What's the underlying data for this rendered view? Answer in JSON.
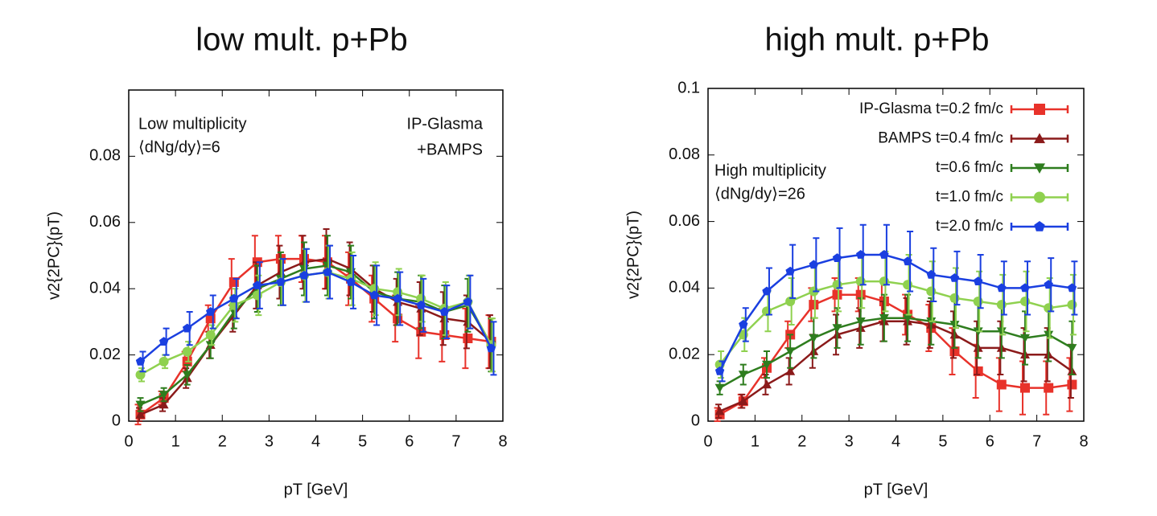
{
  "chart_data": [
    {
      "type": "line",
      "title": "low mult. p+Pb",
      "xlabel": "pT [GeV]",
      "ylabel": "v2{2PC}(pT)",
      "annotations": [
        "Low multiplicity",
        "⟨dNg/dy⟩=6",
        "IP-Glasma",
        "+BAMPS"
      ],
      "xlim": [
        0,
        8
      ],
      "ylim": [
        0,
        0.1
      ],
      "xticks": [
        0,
        1,
        2,
        3,
        4,
        5,
        6,
        7,
        8
      ],
      "yticks": [
        0,
        0.02,
        0.04,
        0.06,
        0.08
      ],
      "x": [
        0.25,
        0.75,
        1.25,
        1.75,
        2.25,
        2.75,
        3.25,
        3.75,
        4.25,
        4.75,
        5.25,
        5.75,
        6.25,
        6.75,
        7.25,
        7.75
      ],
      "series": [
        {
          "color": "#e8322a",
          "marker": "square",
          "values": [
            0.002,
            0.007,
            0.018,
            0.031,
            0.042,
            0.048,
            0.049,
            0.049,
            0.048,
            0.043,
            0.037,
            0.031,
            0.027,
            0.026,
            0.025,
            0.024
          ],
          "errors": [
            0.003,
            0.002,
            0.003,
            0.004,
            0.007,
            0.008,
            0.007,
            0.007,
            0.008,
            0.008,
            0.007,
            0.007,
            0.008,
            0.008,
            0.009,
            0.008
          ]
        },
        {
          "color": "#8b1a1a",
          "marker": "triangle",
          "values": [
            0.002,
            0.005,
            0.013,
            0.023,
            0.032,
            0.041,
            0.045,
            0.048,
            0.049,
            0.046,
            0.04,
            0.036,
            0.034,
            0.031,
            0.03,
            0.024
          ],
          "errors": [
            0.002,
            0.002,
            0.003,
            0.004,
            0.005,
            0.007,
            0.008,
            0.008,
            0.009,
            0.008,
            0.007,
            0.007,
            0.008,
            0.008,
            0.008,
            0.008
          ]
        },
        {
          "color": "#2e7d1e",
          "marker": "triangle-down",
          "values": [
            0.005,
            0.008,
            0.014,
            0.023,
            0.033,
            0.04,
            0.043,
            0.046,
            0.047,
            0.045,
            0.039,
            0.037,
            0.036,
            0.033,
            0.035,
            0.023
          ],
          "errors": [
            0.002,
            0.002,
            0.003,
            0.004,
            0.005,
            0.007,
            0.008,
            0.008,
            0.009,
            0.008,
            0.008,
            0.008,
            0.008,
            0.008,
            0.008,
            0.008
          ]
        },
        {
          "color": "#8fd14f",
          "marker": "circle",
          "values": [
            0.014,
            0.018,
            0.021,
            0.026,
            0.035,
            0.038,
            0.042,
            0.044,
            0.045,
            0.043,
            0.04,
            0.039,
            0.037,
            0.034,
            0.036,
            0.023
          ],
          "errors": [
            0.002,
            0.002,
            0.003,
            0.003,
            0.005,
            0.006,
            0.007,
            0.008,
            0.008,
            0.008,
            0.008,
            0.007,
            0.007,
            0.008,
            0.008,
            0.008
          ]
        },
        {
          "color": "#1a3fe0",
          "marker": "pentagon",
          "values": [
            0.018,
            0.024,
            0.028,
            0.033,
            0.037,
            0.041,
            0.042,
            0.044,
            0.045,
            0.042,
            0.038,
            0.037,
            0.035,
            0.033,
            0.036,
            0.022
          ],
          "errors": [
            0.003,
            0.004,
            0.005,
            0.005,
            0.006,
            0.007,
            0.007,
            0.008,
            0.008,
            0.008,
            0.009,
            0.008,
            0.008,
            0.008,
            0.008,
            0.008
          ]
        }
      ]
    },
    {
      "type": "line",
      "title": "high mult. p+Pb",
      "xlabel": "pT [GeV]",
      "ylabel": "v2{2PC}(pT)",
      "annotations": [
        "High multiplicity",
        "⟨dNg/dy⟩=26"
      ],
      "legend": "upper right",
      "xlim": [
        0,
        8
      ],
      "ylim": [
        0,
        0.1
      ],
      "xticks": [
        0,
        1,
        2,
        3,
        4,
        5,
        6,
        7,
        8
      ],
      "yticks": [
        0,
        0.02,
        0.04,
        0.06,
        0.08,
        0.1
      ],
      "x": [
        0.25,
        0.75,
        1.25,
        1.75,
        2.25,
        2.75,
        3.25,
        3.75,
        4.25,
        4.75,
        5.25,
        5.75,
        6.25,
        6.75,
        7.25,
        7.75
      ],
      "series": [
        {
          "name": "IP-Glasma t=0.2 fm/c",
          "color": "#e8322a",
          "marker": "square",
          "values": [
            0.002,
            0.006,
            0.016,
            0.026,
            0.035,
            0.038,
            0.038,
            0.036,
            0.032,
            0.028,
            0.021,
            0.015,
            0.011,
            0.01,
            0.01,
            0.011
          ],
          "errors": [
            0.002,
            0.002,
            0.003,
            0.004,
            0.005,
            0.005,
            0.005,
            0.006,
            0.006,
            0.007,
            0.007,
            0.008,
            0.008,
            0.008,
            0.008,
            0.008
          ]
        },
        {
          "name": "BAMPS t=0.4 fm/c",
          "color": "#8b1a1a",
          "marker": "triangle",
          "values": [
            0.003,
            0.006,
            0.011,
            0.015,
            0.021,
            0.026,
            0.028,
            0.03,
            0.03,
            0.029,
            0.026,
            0.022,
            0.022,
            0.02,
            0.02,
            0.015
          ],
          "errors": [
            0.002,
            0.002,
            0.003,
            0.004,
            0.005,
            0.006,
            0.006,
            0.006,
            0.007,
            0.007,
            0.007,
            0.008,
            0.008,
            0.008,
            0.008,
            0.008
          ]
        },
        {
          "name": "t=0.6 fm/c",
          "color": "#2e7d1e",
          "marker": "triangle-down",
          "values": [
            0.01,
            0.014,
            0.017,
            0.021,
            0.025,
            0.028,
            0.03,
            0.031,
            0.031,
            0.03,
            0.029,
            0.027,
            0.027,
            0.025,
            0.026,
            0.022
          ],
          "errors": [
            0.002,
            0.003,
            0.004,
            0.005,
            0.006,
            0.006,
            0.007,
            0.007,
            0.007,
            0.007,
            0.007,
            0.008,
            0.008,
            0.008,
            0.008,
            0.008
          ]
        },
        {
          "name": "t=1.0 fm/c",
          "color": "#8fd14f",
          "marker": "circle",
          "values": [
            0.017,
            0.026,
            0.033,
            0.036,
            0.039,
            0.041,
            0.042,
            0.042,
            0.041,
            0.039,
            0.037,
            0.036,
            0.035,
            0.036,
            0.034,
            0.035
          ],
          "errors": [
            0.004,
            0.005,
            0.006,
            0.007,
            0.008,
            0.008,
            0.008,
            0.009,
            0.009,
            0.009,
            0.009,
            0.009,
            0.009,
            0.009,
            0.009,
            0.009
          ]
        },
        {
          "name": "t=2.0 fm/c",
          "color": "#1a3fe0",
          "marker": "pentagon",
          "values": [
            0.015,
            0.029,
            0.039,
            0.045,
            0.047,
            0.049,
            0.05,
            0.05,
            0.048,
            0.044,
            0.043,
            0.042,
            0.04,
            0.04,
            0.041,
            0.04
          ],
          "errors": [
            0.003,
            0.005,
            0.007,
            0.008,
            0.008,
            0.009,
            0.009,
            0.009,
            0.009,
            0.008,
            0.008,
            0.008,
            0.008,
            0.008,
            0.008,
            0.008
          ]
        }
      ]
    }
  ]
}
